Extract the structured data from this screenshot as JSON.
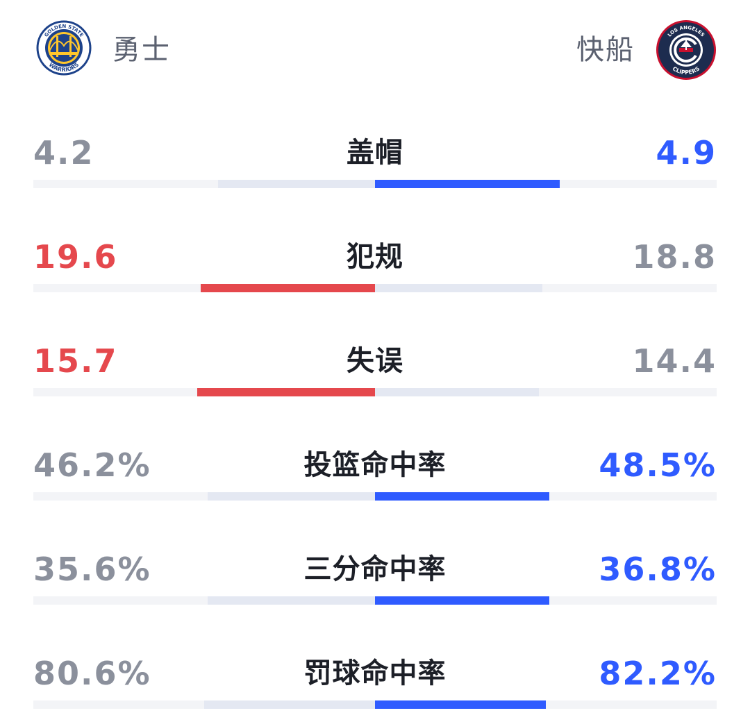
{
  "teams": {
    "home": {
      "name": "勇士",
      "logo_icon": "golden-state-warriors-logo",
      "logo_top_text": "GOLDEN STATE",
      "logo_bottom_text": "WARRIORS"
    },
    "away": {
      "name": "快船",
      "logo_icon": "los-angeles-clippers-logo",
      "logo_top_text": "LOS ANGELES",
      "logo_bottom_text": "CLIPPERS"
    }
  },
  "colors": {
    "neutral_value": "#8b909c",
    "home_lead": "#e5484d",
    "away_lead": "#2f5bff",
    "bar_track": "#f3f4f7",
    "bar_trailing": "#e4e8f2"
  },
  "stats": [
    {
      "label": "盖帽",
      "home": "4.2",
      "away": "4.9",
      "home_share": 0.46,
      "away_share": 0.54,
      "leader": "away"
    },
    {
      "label": "犯规",
      "home": "19.6",
      "away": "18.8",
      "home_share": 0.51,
      "away_share": 0.49,
      "leader": "home"
    },
    {
      "label": "失误",
      "home": "15.7",
      "away": "14.4",
      "home_share": 0.52,
      "away_share": 0.48,
      "leader": "home"
    },
    {
      "label": "投篮命中率",
      "home": "46.2%",
      "away": "48.5%",
      "home_share": 0.49,
      "away_share": 0.51,
      "leader": "away"
    },
    {
      "label": "三分命中率",
      "home": "35.6%",
      "away": "36.8%",
      "home_share": 0.49,
      "away_share": 0.51,
      "leader": "away"
    },
    {
      "label": "罚球命中率",
      "home": "80.6%",
      "away": "82.2%",
      "home_share": 0.5,
      "away_share": 0.5,
      "leader": "away"
    }
  ]
}
